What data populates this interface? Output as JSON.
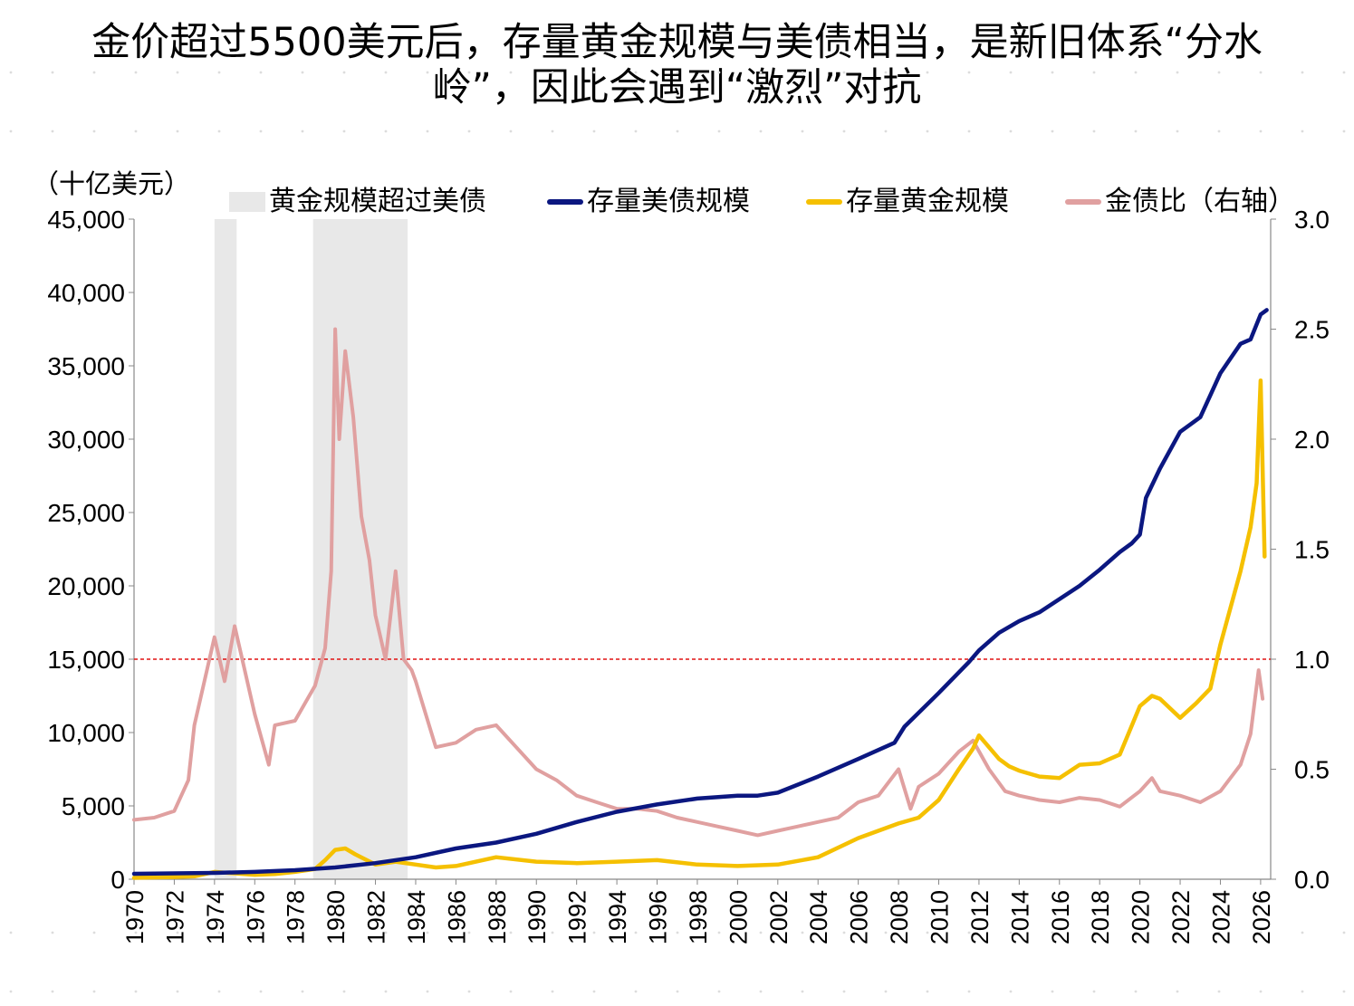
{
  "title_lines": [
    "金价超过5500美元后，存量黄金规模与美债相当，是新旧体系“分水",
    "岭”，因此会遇到“激烈”对抗"
  ],
  "chart_data": {
    "type": "line",
    "title": "金价超过5500美元后，存量黄金规模与美债相当，是新旧体系“分水岭”，因此会遇到“激烈”对抗",
    "ylabel": "（十亿美元）",
    "ylim": [
      0,
      45000
    ],
    "y2lim": [
      0,
      3.0
    ],
    "xlim": [
      1970,
      2026.5
    ],
    "yticks": [
      "0",
      "5,000",
      "10,000",
      "15,000",
      "20,000",
      "25,000",
      "30,000",
      "35,000",
      "40,000",
      "45,000"
    ],
    "y2ticks": [
      "0.0",
      "0.5",
      "1.0",
      "1.5",
      "2.0",
      "2.5",
      "3.0"
    ],
    "xticks": [
      "1970",
      "1972",
      "1974",
      "1976",
      "1978",
      "1980",
      "1982",
      "1984",
      "1986",
      "1988",
      "1990",
      "1992",
      "1994",
      "1996",
      "1998",
      "2000",
      "2002",
      "2004",
      "2006",
      "2008",
      "2010",
      "2012",
      "2014",
      "2016",
      "2018",
      "2020",
      "2022",
      "2024",
      "2026"
    ],
    "legend_position": "top",
    "shaded_periods": {
      "name": "黄金规模超过美债",
      "color": "#e8e8e8",
      "ranges": [
        [
          1974.0,
          1975.1
        ],
        [
          1978.9,
          1983.6
        ]
      ]
    },
    "reference_line": {
      "axis": "right",
      "value": 1.0,
      "color": "#e01010",
      "style": "dashed"
    },
    "series": [
      {
        "name": "存量美债规模",
        "axis": "left",
        "color": "#0b1780",
        "x": [
          1970,
          1972,
          1974,
          1976,
          1978,
          1980,
          1982,
          1984,
          1986,
          1988,
          1990,
          1992,
          1994,
          1996,
          1998,
          2000,
          2001,
          2002,
          2004,
          2006,
          2007.8,
          2008.3,
          2010,
          2011.5,
          2012,
          2013,
          2014,
          2015,
          2016,
          2017,
          2018,
          2019,
          2019.6,
          2020,
          2020.3,
          2021,
          2022,
          2022.5,
          2023,
          2023.5,
          2024,
          2024.5,
          2025,
          2025.5,
          2026,
          2026.3
        ],
        "y": [
          370,
          400,
          430,
          500,
          620,
          800,
          1100,
          1500,
          2100,
          2500,
          3100,
          3900,
          4600,
          5100,
          5500,
          5700,
          5700,
          5900,
          7000,
          8200,
          9300,
          10400,
          12700,
          14800,
          15600,
          16800,
          17600,
          18200,
          19100,
          20000,
          21100,
          22300,
          22900,
          23500,
          26000,
          28000,
          30500,
          31000,
          31500,
          33000,
          34500,
          35500,
          36500,
          36800,
          38500,
          38800
        ]
      },
      {
        "name": "存量黄金规模",
        "axis": "left",
        "color": "#f5c000",
        "x": [
          1970,
          1972,
          1973,
          1974,
          1975,
          1976,
          1977,
          1978,
          1979,
          1979.5,
          1980,
          1980.5,
          1981,
          1982,
          1983,
          1984,
          1985,
          1986,
          1987,
          1988,
          1990,
          1992,
          1994,
          1996,
          1998,
          2000,
          2002,
          2004,
          2006,
          2008,
          2009,
          2010,
          2011,
          2011.7,
          2012,
          2013,
          2013.5,
          2014,
          2015,
          2016,
          2017,
          2018,
          2019,
          2020,
          2020.6,
          2021,
          2022,
          2022.8,
          2023.5,
          2024,
          2024.5,
          2025,
          2025.5,
          2025.8,
          2026,
          2026.2
        ],
        "y": [
          100,
          150,
          200,
          500,
          400,
          300,
          350,
          500,
          700,
          1300,
          2000,
          2100,
          1700,
          1000,
          1200,
          1000,
          800,
          900,
          1200,
          1500,
          1200,
          1100,
          1200,
          1300,
          1000,
          900,
          1000,
          1500,
          2800,
          3800,
          4200,
          5400,
          7500,
          8900,
          9800,
          8200,
          7700,
          7400,
          7000,
          6900,
          7800,
          7900,
          8500,
          11800,
          12500,
          12300,
          11000,
          12000,
          13000,
          16000,
          18500,
          21000,
          24000,
          27000,
          34000,
          22000
        ]
      },
      {
        "name": "金债比（右轴）",
        "axis": "right",
        "color": "#e0a0a0",
        "x": [
          1970,
          1971,
          1972,
          1972.7,
          1973,
          1973.5,
          1974,
          1974.5,
          1975,
          1975.5,
          1976,
          1976.7,
          1977,
          1978,
          1979,
          1979.5,
          1979.8,
          1980,
          1980.2,
          1980.5,
          1980.9,
          1981.3,
          1981.7,
          1982,
          1982.5,
          1983,
          1983.4,
          1983.8,
          1984,
          1984.5,
          1985,
          1986,
          1987,
          1988,
          1989,
          1990,
          1991,
          1992,
          1993,
          1994,
          1995,
          1996,
          1997,
          1998,
          1999,
          2000,
          2001,
          2002,
          2003,
          2004,
          2005,
          2006,
          2007,
          2008,
          2008.6,
          2009,
          2010,
          2011,
          2011.7,
          2012.5,
          2013.3,
          2014,
          2015,
          2016,
          2017,
          2018,
          2019,
          2020,
          2020.6,
          2021,
          2022,
          2023,
          2024,
          2025,
          2025.5,
          2025.9,
          2026.1
        ],
        "y": [
          0.27,
          0.28,
          0.31,
          0.45,
          0.7,
          0.9,
          1.1,
          0.9,
          1.15,
          0.95,
          0.75,
          0.52,
          0.7,
          0.72,
          0.88,
          1.05,
          1.4,
          2.5,
          2.0,
          2.4,
          2.1,
          1.65,
          1.45,
          1.2,
          1.0,
          1.4,
          1.0,
          0.95,
          0.9,
          0.75,
          0.6,
          0.62,
          0.68,
          0.7,
          0.6,
          0.5,
          0.45,
          0.38,
          0.35,
          0.32,
          0.32,
          0.31,
          0.28,
          0.26,
          0.24,
          0.22,
          0.2,
          0.22,
          0.24,
          0.26,
          0.28,
          0.35,
          0.38,
          0.5,
          0.32,
          0.42,
          0.48,
          0.58,
          0.63,
          0.5,
          0.4,
          0.38,
          0.36,
          0.35,
          0.37,
          0.36,
          0.33,
          0.4,
          0.46,
          0.4,
          0.38,
          0.35,
          0.4,
          0.52,
          0.66,
          0.95,
          0.82
        ]
      }
    ]
  }
}
